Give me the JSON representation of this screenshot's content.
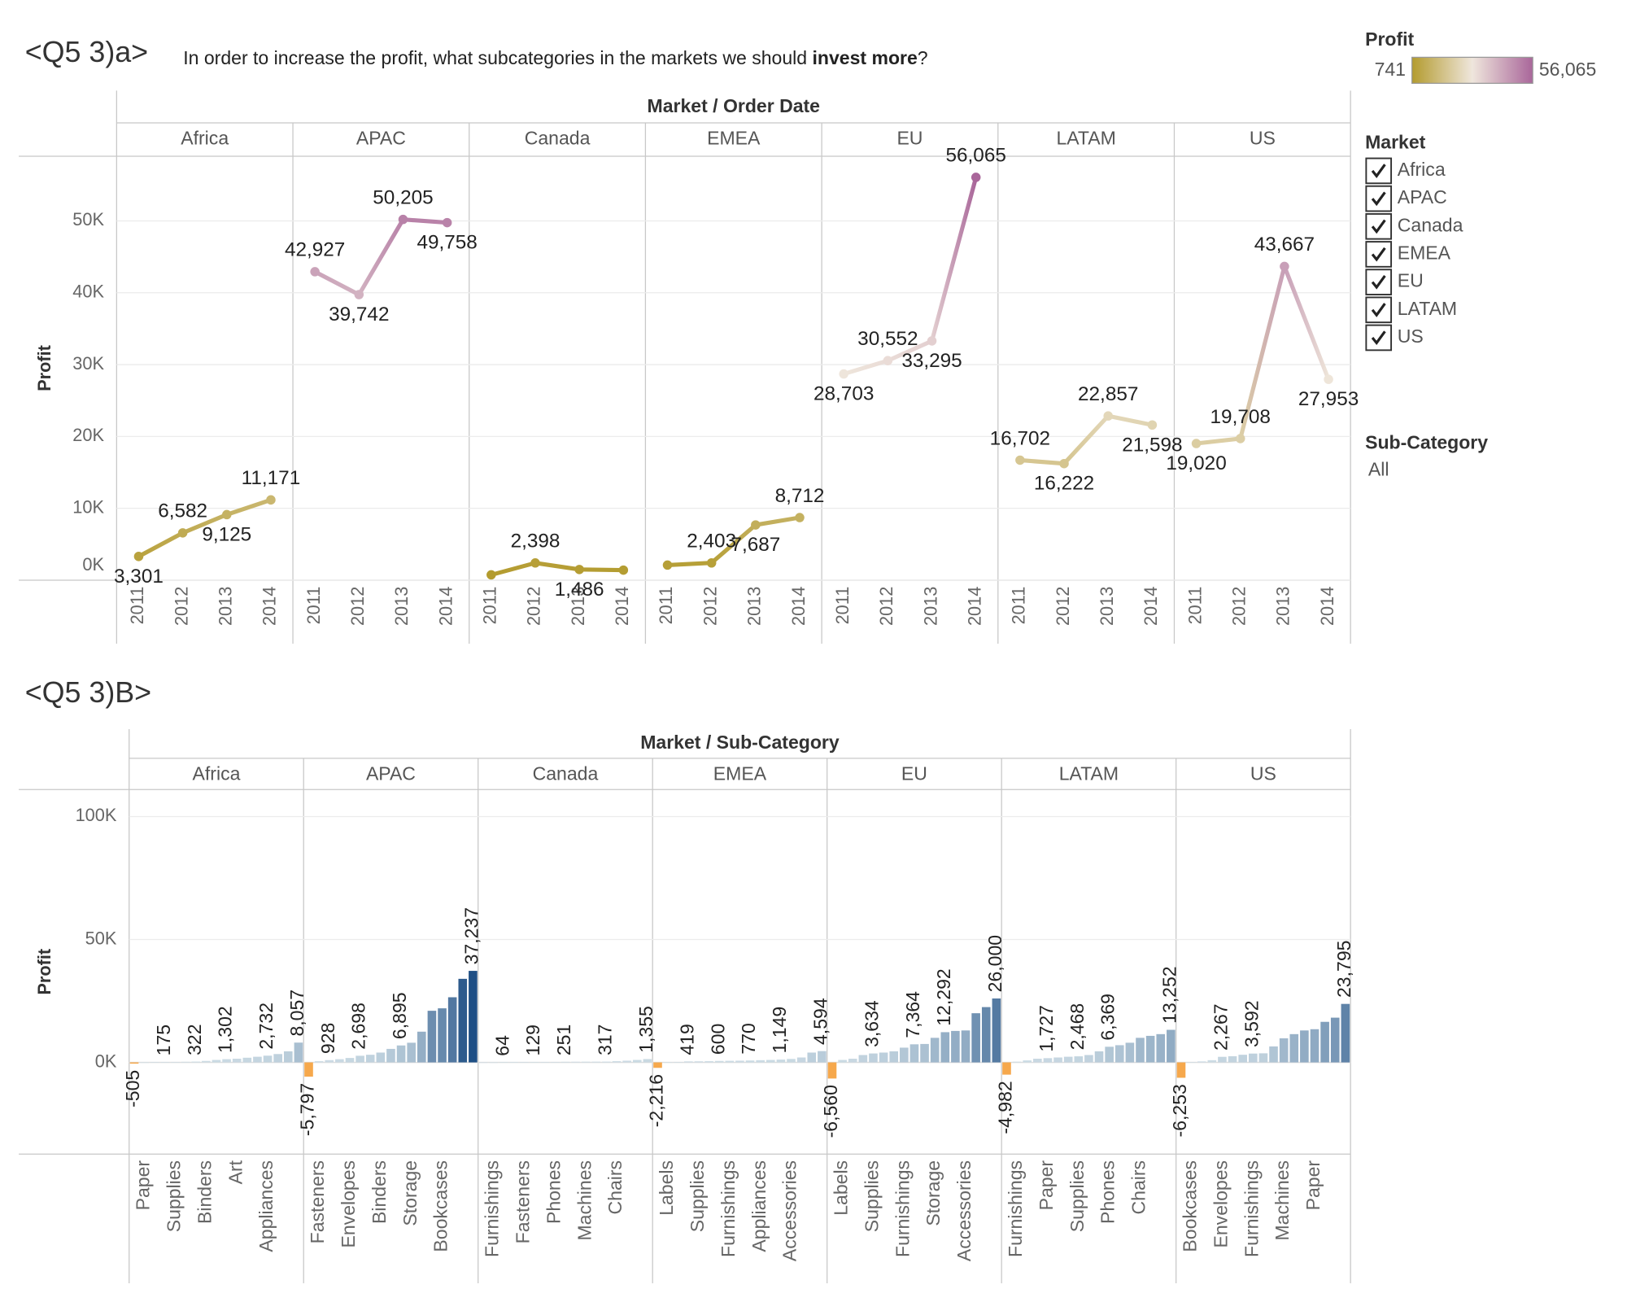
{
  "chart_data": [
    {
      "type": "line",
      "title": "<Q5 3)a>",
      "question": {
        "before": "In order to increase the profit, what subcategories in the markets we should",
        "bold": "invest more",
        "after": "?"
      },
      "header": "Market / Order Date",
      "y_label": "Profit",
      "categories": [
        "2011",
        "2012",
        "2013",
        "2014"
      ],
      "ylim": [
        0,
        59000
      ],
      "yticks": [
        {
          "value": 0,
          "label": "0K"
        },
        {
          "value": 10000,
          "label": "10K"
        },
        {
          "value": 20000,
          "label": "20K"
        },
        {
          "value": 30000,
          "label": "30K"
        },
        {
          "value": 40000,
          "label": "40K"
        },
        {
          "value": 50000,
          "label": "50K"
        }
      ],
      "grid": true,
      "color_scale": {
        "title": "Profit",
        "colors": [
          "#b39b2e",
          "#efe6dc",
          "#a9669a"
        ],
        "ticks": [
          741,
          {
            "value": 56065,
            "label": "56,065"
          }
        ]
      },
      "series": [
        {
          "name": "Africa",
          "values": [
            3301,
            6582,
            9125,
            11171
          ],
          "value_labels": [
            "3,301",
            "6,582",
            "9,125",
            "11,171"
          ]
        },
        {
          "name": "APAC",
          "values": [
            42927,
            39742,
            50205,
            49758
          ],
          "value_labels": [
            "42,927",
            "39,742",
            "50,205",
            "49,758"
          ]
        },
        {
          "name": "Canada",
          "values": [
            741,
            2398,
            1486,
            1400
          ],
          "value_labels": [
            null,
            "2,398",
            "1,486",
            null
          ]
        },
        {
          "name": "EMEA",
          "values": [
            2100,
            2403,
            7687,
            8712
          ],
          "value_labels": [
            null,
            "2,403",
            "7,687",
            "8,712"
          ]
        },
        {
          "name": "EU",
          "values": [
            28703,
            30552,
            33295,
            56065
          ],
          "value_labels": [
            "28,703",
            "30,552",
            "33,295",
            "56,065"
          ]
        },
        {
          "name": "LATAM",
          "values": [
            16702,
            16222,
            22857,
            21598
          ],
          "value_labels": [
            "16,702",
            "16,222",
            "22,857",
            "21,598"
          ]
        },
        {
          "name": "US",
          "values": [
            19020,
            19708,
            43667,
            27953
          ],
          "value_labels": [
            "19,020",
            "19,708",
            "43,667",
            "27,953"
          ]
        }
      ]
    },
    {
      "type": "bar",
      "title": "<Q5 3)B>",
      "header": "Market / Sub-Category",
      "y_label": "Profit",
      "ylim": [
        -37300,
        111000
      ],
      "yticks": [
        {
          "value": 0,
          "label": "0K"
        },
        {
          "value": 50000,
          "label": "50K"
        },
        {
          "value": 100000,
          "label": "100K"
        }
      ],
      "grid": true,
      "colors": {
        "negative": "#f6a84c",
        "low": "#cfdee6",
        "high": "#1f4f85"
      },
      "panels": [
        {
          "name": "Africa",
          "categories": [
            null,
            "Paper",
            null,
            null,
            "Supplies",
            null,
            null,
            "Binders",
            null,
            null,
            "Art",
            null,
            null,
            "Appliances",
            null,
            null,
            null
          ],
          "values": [
            -505,
            20,
            100,
            175,
            200,
            250,
            322,
            600,
            1000,
            1302,
            1500,
            1900,
            2300,
            2732,
            3400,
            4500,
            8057
          ],
          "value_labels": [
            "-505",
            null,
            null,
            "175",
            null,
            null,
            "322",
            null,
            null,
            "1,302",
            null,
            null,
            null,
            "2,732",
            null,
            null,
            "8,057"
          ]
        },
        {
          "name": "APAC",
          "categories": [
            null,
            "Fasteners",
            null,
            null,
            "Envelopes",
            null,
            null,
            "Binders",
            null,
            null,
            "Storage",
            null,
            null,
            "Bookcases",
            null,
            null,
            null
          ],
          "values": [
            -5797,
            500,
            928,
            1300,
            1800,
            2698,
            3100,
            4000,
            5500,
            6895,
            8000,
            12500,
            21000,
            22000,
            26500,
            34000,
            37237
          ],
          "value_labels": [
            "-5,797",
            null,
            "928",
            null,
            null,
            "2,698",
            null,
            null,
            null,
            "6,895",
            null,
            null,
            null,
            null,
            null,
            null,
            "37,237"
          ]
        },
        {
          "name": "Canada",
          "categories": [
            null,
            "Furnishings",
            null,
            null,
            "Fasteners",
            null,
            null,
            "Phones",
            null,
            null,
            "Machines",
            null,
            null,
            "Chairs",
            null,
            null,
            null
          ],
          "values": [
            5,
            20,
            64,
            80,
            100,
            129,
            160,
            200,
            251,
            270,
            290,
            300,
            317,
            500,
            700,
            1000,
            1355
          ],
          "value_labels": [
            null,
            null,
            "64",
            null,
            null,
            "129",
            null,
            null,
            "251",
            null,
            null,
            null,
            "317",
            null,
            null,
            null,
            "1,355"
          ]
        },
        {
          "name": "EMEA",
          "categories": [
            null,
            "Labels",
            null,
            null,
            "Supplies",
            null,
            null,
            "Furnishings",
            null,
            null,
            "Appliances",
            null,
            null,
            "Accessories",
            null,
            null,
            null
          ],
          "values": [
            -2216,
            50,
            200,
            419,
            450,
            500,
            600,
            650,
            700,
            770,
            900,
            1000,
            1149,
            1400,
            2000,
            4000,
            4594
          ],
          "value_labels": [
            "-2,216",
            null,
            null,
            "419",
            null,
            null,
            "600",
            null,
            null,
            "770",
            null,
            null,
            "1,149",
            null,
            null,
            null,
            "4,594"
          ]
        },
        {
          "name": "EU",
          "categories": [
            null,
            "Labels",
            null,
            null,
            "Supplies",
            null,
            null,
            "Furnishings",
            null,
            null,
            "Storage",
            null,
            null,
            "Accessories",
            null,
            null,
            null
          ],
          "values": [
            -6560,
            1000,
            1500,
            3000,
            3634,
            4000,
            4500,
            6000,
            7364,
            7500,
            10000,
            12292,
            12800,
            13000,
            20000,
            22500,
            26000
          ],
          "value_labels": [
            "-6,560",
            null,
            null,
            null,
            "3,634",
            null,
            null,
            null,
            "7,364",
            null,
            null,
            "12,292",
            null,
            null,
            null,
            null,
            "26,000"
          ]
        },
        {
          "name": "LATAM",
          "categories": [
            null,
            "Furnishings",
            null,
            null,
            "Paper",
            null,
            null,
            "Supplies",
            null,
            null,
            "Phones",
            null,
            null,
            "Chairs",
            null,
            null,
            null
          ],
          "values": [
            -4982,
            300,
            800,
            1500,
            1727,
            2000,
            2300,
            2468,
            3000,
            4500,
            6369,
            7000,
            8000,
            10000,
            10800,
            11500,
            13252
          ],
          "value_labels": [
            "-4,982",
            null,
            null,
            null,
            "1,727",
            null,
            null,
            "2,468",
            null,
            null,
            "6,369",
            null,
            null,
            null,
            null,
            null,
            "13,252"
          ]
        },
        {
          "name": "US",
          "categories": [
            null,
            "Bookcases",
            null,
            null,
            "Envelopes",
            null,
            null,
            "Furnishings",
            null,
            null,
            "Machines",
            null,
            null,
            "Paper",
            null,
            null,
            null
          ],
          "values": [
            -6253,
            200,
            400,
            900,
            2267,
            2500,
            3100,
            3592,
            3700,
            6500,
            9800,
            11500,
            13000,
            13500,
            16500,
            18200,
            23795
          ],
          "value_labels": [
            "-6,253",
            null,
            null,
            null,
            "2,267",
            null,
            null,
            "3,592",
            null,
            null,
            null,
            null,
            null,
            null,
            null,
            null,
            "23,795"
          ]
        }
      ]
    }
  ],
  "filters": {
    "market": {
      "title": "Market",
      "items": [
        "Africa",
        "APAC",
        "Canada",
        "EMEA",
        "EU",
        "LATAM",
        "US"
      ]
    },
    "sub_category": {
      "title": "Sub-Category",
      "value": "All"
    }
  }
}
